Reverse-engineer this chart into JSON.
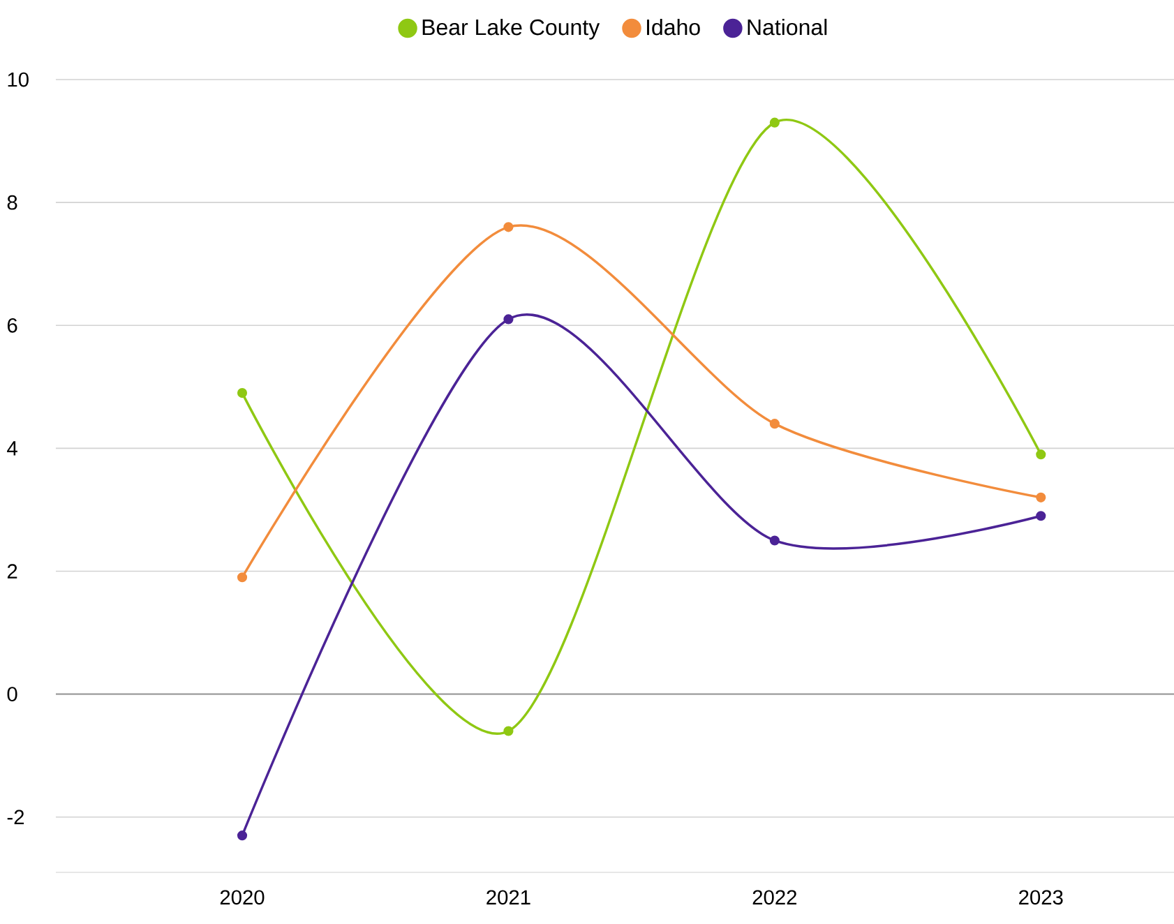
{
  "chart_data": {
    "type": "line",
    "categories": [
      "2020",
      "2021",
      "2022",
      "2023"
    ],
    "series": [
      {
        "name": "Bear Lake County",
        "color": "#8fc813",
        "values": [
          4.9,
          -0.6,
          9.3,
          3.9
        ]
      },
      {
        "name": "Idaho",
        "color": "#f28c3c",
        "values": [
          1.9,
          7.6,
          4.4,
          3.2
        ]
      },
      {
        "name": "National",
        "color": "#4b2396",
        "values": [
          -2.3,
          6.1,
          2.5,
          2.9
        ]
      }
    ],
    "ylim": [
      -2.9,
      10
    ],
    "yticks": [
      -2,
      0,
      2,
      4,
      6,
      8,
      10
    ],
    "grid": "y",
    "legend": "top",
    "marker": "circle",
    "line_style": "solid"
  }
}
